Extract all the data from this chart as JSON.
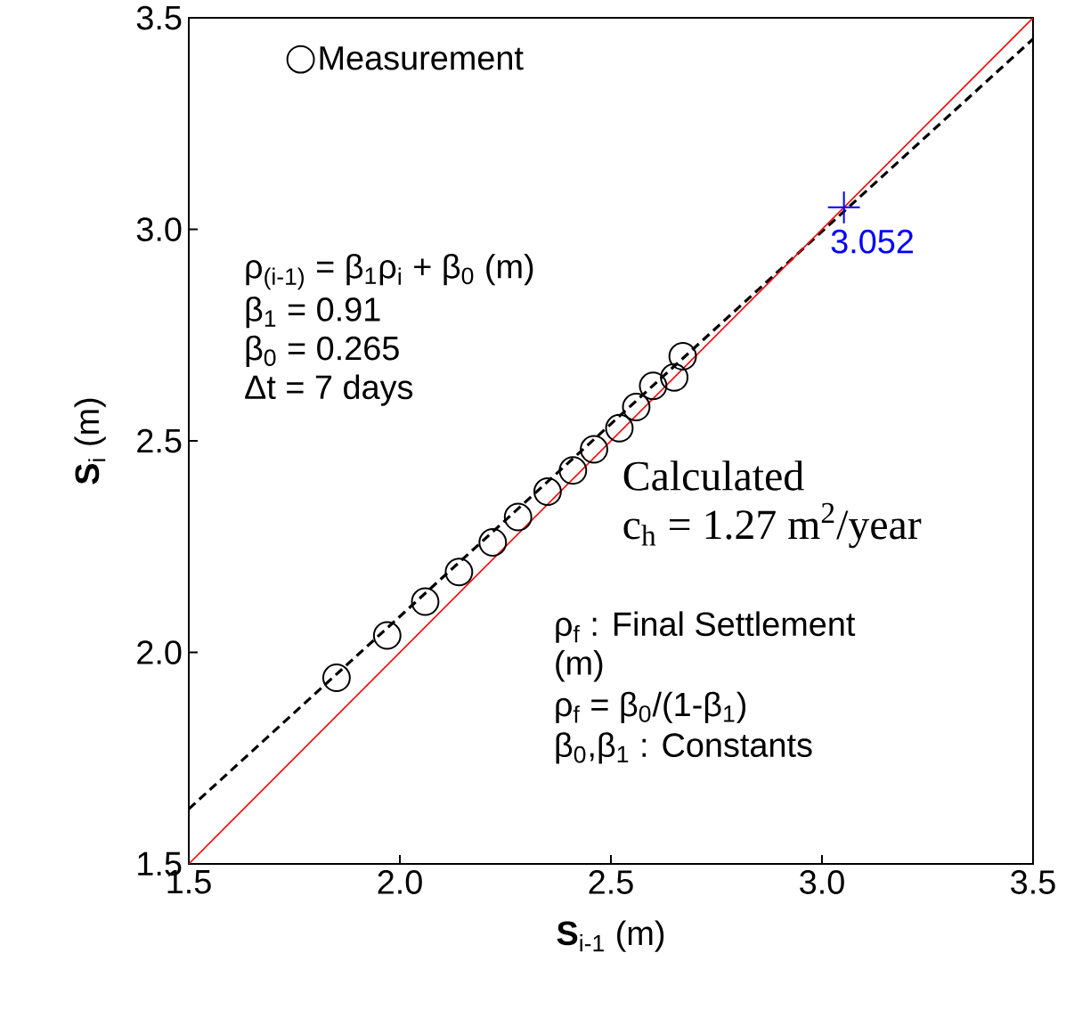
{
  "chart_data": {
    "type": "scatter",
    "xlabel": "**S**$_{i-1}$ (m)",
    "ylabel": "**S**$_{i}$ (m)",
    "xlim": [
      1.5,
      3.5
    ],
    "ylim": [
      1.5,
      3.5
    ],
    "xticks": [
      {
        "value": 1.5,
        "label": "1.5"
      },
      {
        "value": 2,
        "label": "2.0"
      },
      {
        "value": 2.5,
        "label": "2.5"
      },
      {
        "value": 3,
        "label": "3.0"
      },
      {
        "value": 3.5,
        "label": "3.5"
      }
    ],
    "yticks": [
      {
        "value": 1.5,
        "label": "1.5"
      },
      {
        "value": 2,
        "label": "2.0"
      },
      {
        "value": 2.5,
        "label": "2.5"
      },
      {
        "value": 3,
        "label": "3.0"
      },
      {
        "value": 3.5,
        "label": "3.5"
      }
    ],
    "grid": false,
    "legend": "top left",
    "series": [
      {
        "name": "Measurement",
        "marker": "circle",
        "color": "#000000",
        "x": [
          1.85,
          1.97,
          2.06,
          2.14,
          2.22,
          2.28,
          2.35,
          2.41,
          2.46,
          2.52,
          2.56,
          2.6,
          2.65,
          2.67
        ],
        "values": [
          1.94,
          2.04,
          2.12,
          2.19,
          2.26,
          2.32,
          2.38,
          2.43,
          2.48,
          2.53,
          2.58,
          2.63,
          2.65,
          2.7
        ]
      },
      {
        "type": "line",
        "line_style": "dashed",
        "marker": "none",
        "color": "#000000",
        "x": [
          1.5,
          3.5
        ],
        "values": [
          1.63,
          3.45
        ]
      },
      {
        "type": "line",
        "line_style": "solid",
        "marker": "none",
        "color": "#ff0000",
        "x": [
          1.5,
          3.5
        ],
        "values": [
          1.5,
          3.5
        ]
      },
      {
        "type": "scatter",
        "marker": "cross",
        "color": "#0000ff",
        "x": [
          3.052
        ],
        "values": [
          3.052
        ]
      }
    ],
    "annotations": [
      "ρ$_{(i-1)}$  = β$_{1}$ρ$_{i}$ + β$_{0}$ (m)",
      "β$_{1}$ =  0.91",
      "β$_{0}$ = 0.265",
      "Δt = 7 days",
      "Calculated",
      "c$_{h}$ = 1.27 m$^{2}$/year",
      "ρ$_{f}$ : Final Settlement",
      "(m)",
      "ρ$_{f}$  = β$_{0}$/(1-β$_{1}$)",
      "β$_{0}$,β$_{1}$ : Constants",
      {
        "text": "3.052",
        "x": 3.052,
        "y": 3.052
      }
    ]
  }
}
